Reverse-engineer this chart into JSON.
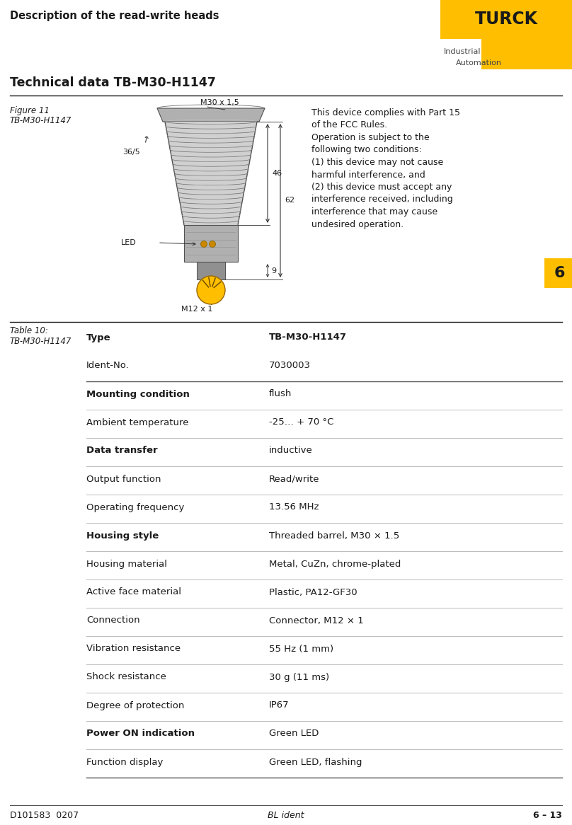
{
  "header_text": "Description of the read-write heads",
  "turck_text": "TURCK",
  "section_title": "Technical data TB-M30-H1147",
  "chapter_number": "6",
  "footer_left": "D101583  0207",
  "footer_center": "BL ident",
  "footer_right": "6 – 13",
  "fcc_text": [
    "This device complies with Part 15",
    "of the FCC Rules.",
    "Operation is subject to the",
    "following two conditions:",
    "(1) this device may not cause",
    "harmful interference, and",
    "(2) this device must accept any",
    "interference received, including",
    "interference that may cause",
    "undesired operation."
  ],
  "table_rows": [
    {
      "col1": "Type",
      "col2": "TB-M30-H1147",
      "bold1": true,
      "bold2": true,
      "line_above": true,
      "line_below": false
    },
    {
      "col1": "Ident-No.",
      "col2": "7030003",
      "bold1": false,
      "bold2": false,
      "line_above": false,
      "line_below": true
    },
    {
      "col1": "Mounting condition",
      "col2": "flush",
      "bold1": true,
      "bold2": false,
      "line_above": false,
      "line_below": true
    },
    {
      "col1": "Ambient temperature",
      "col2": "-25… + 70 °C",
      "bold1": false,
      "bold2": false,
      "line_above": false,
      "line_below": true
    },
    {
      "col1": "Data transfer",
      "col2": "inductive",
      "bold1": true,
      "bold2": false,
      "line_above": false,
      "line_below": true
    },
    {
      "col1": "Output function",
      "col2": "Read/write",
      "bold1": false,
      "bold2": false,
      "line_above": false,
      "line_below": true
    },
    {
      "col1": "Operating frequency",
      "col2": "13.56 MHz",
      "bold1": false,
      "bold2": false,
      "line_above": false,
      "line_below": true
    },
    {
      "col1": "Housing style",
      "col2": "Threaded barrel, M30 × 1.5",
      "bold1": true,
      "bold2": false,
      "line_above": false,
      "line_below": true
    },
    {
      "col1": "Housing material",
      "col2": "Metal, CuZn, chrome-plated",
      "bold1": false,
      "bold2": false,
      "line_above": false,
      "line_below": true
    },
    {
      "col1": "Active face material",
      "col2": "Plastic, PA12-GF30",
      "bold1": false,
      "bold2": false,
      "line_above": false,
      "line_below": true
    },
    {
      "col1": "Connection",
      "col2": "Connector, M12 × 1",
      "bold1": false,
      "bold2": false,
      "line_above": false,
      "line_below": true
    },
    {
      "col1": "Vibration resistance",
      "col2": "55 Hz (1 mm)",
      "bold1": false,
      "bold2": false,
      "line_above": false,
      "line_below": true
    },
    {
      "col1": "Shock resistance",
      "col2": "30 g (11 ms)",
      "bold1": false,
      "bold2": false,
      "line_above": false,
      "line_below": true
    },
    {
      "col1": "Degree of protection",
      "col2": "IP67",
      "bold1": false,
      "bold2": false,
      "line_above": false,
      "line_below": true
    },
    {
      "col1": "Power ON indication",
      "col2": "Green LED",
      "bold1": true,
      "bold2": false,
      "line_above": false,
      "line_below": true
    },
    {
      "col1": "Function display",
      "col2": "Green LED, flashing",
      "bold1": false,
      "bold2": false,
      "line_above": false,
      "line_below": true
    }
  ],
  "yellow": "#FFBF00",
  "dark": "#1a1a1a",
  "gray_line": "#aaaaaa",
  "black_line": "#333333"
}
